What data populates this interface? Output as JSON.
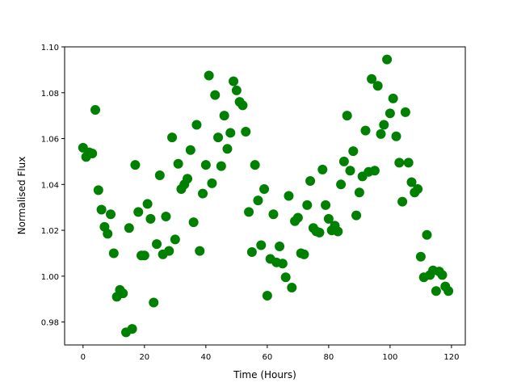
{
  "chart_data": {
    "type": "scatter",
    "title": "",
    "xlabel": "Time (Hours)",
    "ylabel": "Normalised Flux",
    "xlim": [
      -6,
      124.5
    ],
    "ylim": [
      0.97,
      1.1
    ],
    "xticks": [
      0,
      20,
      40,
      60,
      80,
      100,
      120
    ],
    "xtick_labels": [
      "0",
      "20",
      "40",
      "60",
      "80",
      "100",
      "120"
    ],
    "yticks": [
      0.98,
      1.0,
      1.02,
      1.04,
      1.06,
      1.08,
      1.1
    ],
    "ytick_labels": [
      "0.98",
      "1.00",
      "1.02",
      "1.04",
      "1.06",
      "1.08",
      "1.10"
    ],
    "grid": false,
    "marker_color": "#008000",
    "x": [
      0,
      1,
      2,
      3,
      4,
      5,
      6,
      7,
      8,
      9,
      10,
      11,
      12,
      13,
      14,
      15,
      16,
      17,
      18,
      19,
      20,
      21,
      22,
      23,
      24,
      25,
      26,
      27,
      28,
      29,
      30,
      31,
      32,
      33,
      34,
      35,
      36,
      37,
      38,
      39,
      40,
      41,
      42,
      43,
      44,
      45,
      46,
      47,
      48,
      49,
      50,
      51,
      52,
      53,
      54,
      55,
      56,
      57,
      58,
      59,
      60,
      61,
      62,
      63,
      64,
      65,
      66,
      67,
      68,
      69,
      70,
      71,
      72,
      73,
      74,
      75,
      76,
      77,
      78,
      79,
      80,
      81,
      82,
      83,
      84,
      85,
      86,
      87,
      88,
      89,
      90,
      91,
      92,
      93,
      94,
      95,
      96,
      97,
      98,
      99,
      100,
      101,
      102,
      103,
      104,
      105,
      106,
      107,
      108,
      109,
      110,
      111,
      112,
      113,
      114,
      115,
      116,
      117,
      118,
      119
    ],
    "y": [
      1.056,
      1.052,
      1.054,
      1.0535,
      1.0725,
      1.0375,
      1.029,
      1.0215,
      1.0185,
      1.027,
      1.01,
      0.991,
      0.994,
      0.9925,
      0.9755,
      1.021,
      0.977,
      1.0485,
      1.028,
      1.009,
      1.009,
      1.0315,
      1.025,
      0.9885,
      1.014,
      1.044,
      1.0095,
      1.026,
      1.011,
      1.0605,
      1.016,
      1.049,
      1.038,
      1.04,
      1.0425,
      1.055,
      1.0235,
      1.066,
      1.011,
      1.036,
      1.0485,
      1.0875,
      1.0405,
      1.079,
      1.0605,
      1.048,
      1.07,
      1.0555,
      1.0625,
      1.085,
      1.081,
      1.076,
      1.0745,
      1.063,
      1.028,
      1.0105,
      1.0485,
      1.033,
      1.0135,
      1.038,
      0.9915,
      1.0075,
      1.027,
      1.006,
      1.013,
      1.0055,
      0.9995,
      1.035,
      0.995,
      1.024,
      1.0255,
      1.01,
      1.0095,
      1.031,
      1.0415,
      1.021,
      1.0195,
      1.019,
      1.0465,
      1.031,
      1.025,
      1.02,
      1.022,
      1.0195,
      1.04,
      1.05,
      1.07,
      1.046,
      1.0545,
      1.0265,
      1.0365,
      1.0435,
      1.0635,
      1.0455,
      1.086,
      1.046,
      1.083,
      1.062,
      1.066,
      1.0945,
      1.071,
      1.0775,
      1.061,
      1.0495,
      1.0325,
      1.0715,
      1.0495,
      1.041,
      1.0365,
      1.038,
      1.0085,
      0.9995,
      1.018,
      1.0005,
      1.0025,
      0.9935,
      1.002,
      1.0005,
      0.9955,
      0.9935
    ]
  }
}
